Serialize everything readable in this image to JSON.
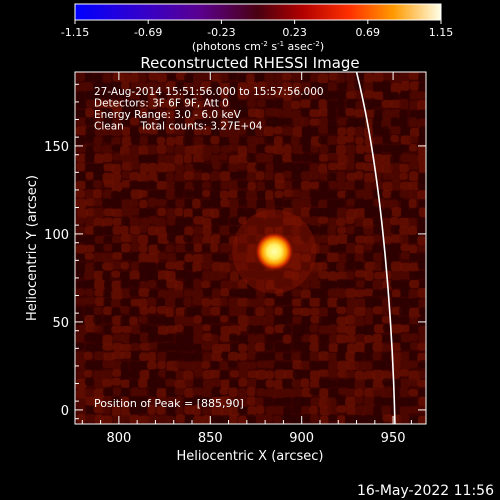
{
  "chart_data": {
    "type": "heatmap",
    "title": "Reconstructed RHESSI Image",
    "xlabel": "Heliocentric X (arcsec)",
    "ylabel": "Heliocentric Y (arcsec)",
    "xlim": [
      776,
      968
    ],
    "ylim": [
      -8,
      192
    ],
    "xticks": [
      800,
      850,
      900,
      950
    ],
    "yticks": [
      0,
      50,
      100,
      150
    ],
    "colorbar": {
      "range": [
        -1.15,
        1.15
      ],
      "ticks": [
        "-1.15",
        "-0.69",
        "-0.23",
        "0.23",
        "0.69",
        "1.15"
      ],
      "label": "(photons cm",
      "label_sup1": "-2",
      "label_mid": " s",
      "label_sup2": "-1",
      "label_mid2": " asec",
      "label_sup3": "-2",
      "label_end": ")"
    },
    "annotations": [
      "27-Aug-2014 15:51:56.000 to 15:57:56.000",
      "Detectors: 3F 6F 9F, Att 0",
      "Energy Range: 3.0 - 6.0 keV",
      "Clean     Total counts: 3.27E+04"
    ],
    "peak": {
      "x": 885,
      "y": 90,
      "label": "Position of Peak = [885,90]"
    },
    "limb": [
      [
        930,
        192
      ],
      [
        945,
        130
      ],
      [
        950,
        40
      ],
      [
        951,
        -8
      ]
    ]
  },
  "footer": {
    "timestamp": "16-May-2022 11:56"
  }
}
